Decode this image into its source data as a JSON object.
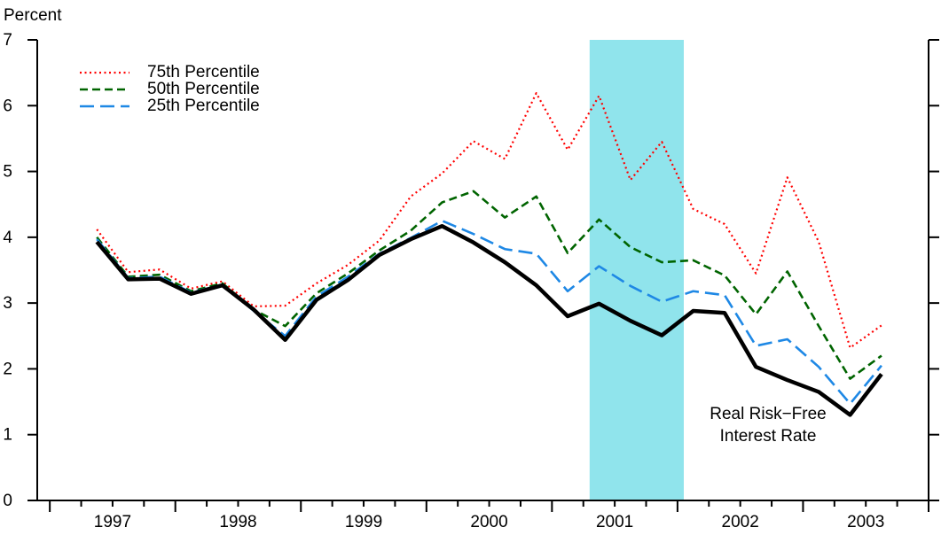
{
  "chart_data": {
    "type": "line",
    "ylabel": "Percent",
    "xlim": [
      1996.9,
      2004.0
    ],
    "xticks": [
      {
        "value": 1997.5,
        "label": "1997"
      },
      {
        "value": 1998.5,
        "label": "1998"
      },
      {
        "value": 1999.5,
        "label": "1999"
      },
      {
        "value": 2000.5,
        "label": "2000"
      },
      {
        "value": 2001.5,
        "label": "2001"
      },
      {
        "value": 2002.5,
        "label": "2002"
      },
      {
        "value": 2003.5,
        "label": "2003"
      }
    ],
    "ylim": [
      0,
      7
    ],
    "yticks": [
      0,
      1,
      2,
      3,
      4,
      5,
      6,
      7
    ],
    "shaded_region": {
      "x": [
        2001.3,
        2002.05
      ],
      "color": "#90e4ec"
    },
    "x": [
      1997.375,
      1997.625,
      1997.875,
      1998.125,
      1998.375,
      1998.625,
      1998.875,
      1999.125,
      1999.375,
      1999.625,
      1999.875,
      2000.125,
      2000.375,
      2000.625,
      2000.875,
      2001.125,
      2001.375,
      2001.625,
      2001.875,
      2002.125,
      2002.375,
      2002.625,
      2002.875,
      2003.125,
      2003.375,
      2003.625
    ],
    "series": [
      {
        "name": "75th Percentile",
        "color": "#ff0000",
        "style": "dotted",
        "values": [
          4.12,
          3.47,
          3.51,
          3.22,
          3.33,
          2.95,
          2.96,
          3.3,
          3.58,
          3.95,
          4.62,
          4.97,
          5.46,
          5.19,
          6.19,
          5.33,
          6.15,
          4.87,
          5.45,
          4.43,
          4.2,
          3.45,
          4.91,
          3.93,
          2.32,
          2.66
        ]
      },
      {
        "name": "50th Percentile",
        "color": "#006400",
        "style": "dashed",
        "values": [
          4.0,
          3.4,
          3.43,
          3.18,
          3.3,
          2.9,
          2.65,
          3.15,
          3.45,
          3.8,
          4.1,
          4.53,
          4.7,
          4.3,
          4.62,
          3.76,
          4.27,
          3.85,
          3.62,
          3.65,
          3.42,
          2.83,
          3.48,
          2.65,
          1.85,
          2.2
        ]
      },
      {
        "name": "25th Percentile",
        "color": "#1e88e5",
        "style": "longdash",
        "values": [
          3.97,
          3.38,
          3.4,
          3.16,
          3.28,
          2.88,
          2.5,
          3.1,
          3.4,
          3.75,
          3.99,
          4.25,
          4.05,
          3.82,
          3.75,
          3.18,
          3.56,
          3.26,
          3.02,
          3.18,
          3.12,
          2.35,
          2.45,
          2.03,
          1.47,
          2.05
        ]
      },
      {
        "label_lines": [
          "Real Risk−Free",
          "Interest Rate"
        ],
        "color": "#000000",
        "style": "solid",
        "values": [
          3.93,
          3.36,
          3.37,
          3.14,
          3.27,
          2.9,
          2.44,
          3.05,
          3.35,
          3.73,
          3.97,
          4.17,
          3.92,
          3.62,
          3.27,
          2.8,
          2.99,
          2.73,
          2.51,
          2.88,
          2.85,
          2.03,
          1.83,
          1.65,
          1.3,
          1.92
        ]
      }
    ],
    "legend": "upper left"
  }
}
